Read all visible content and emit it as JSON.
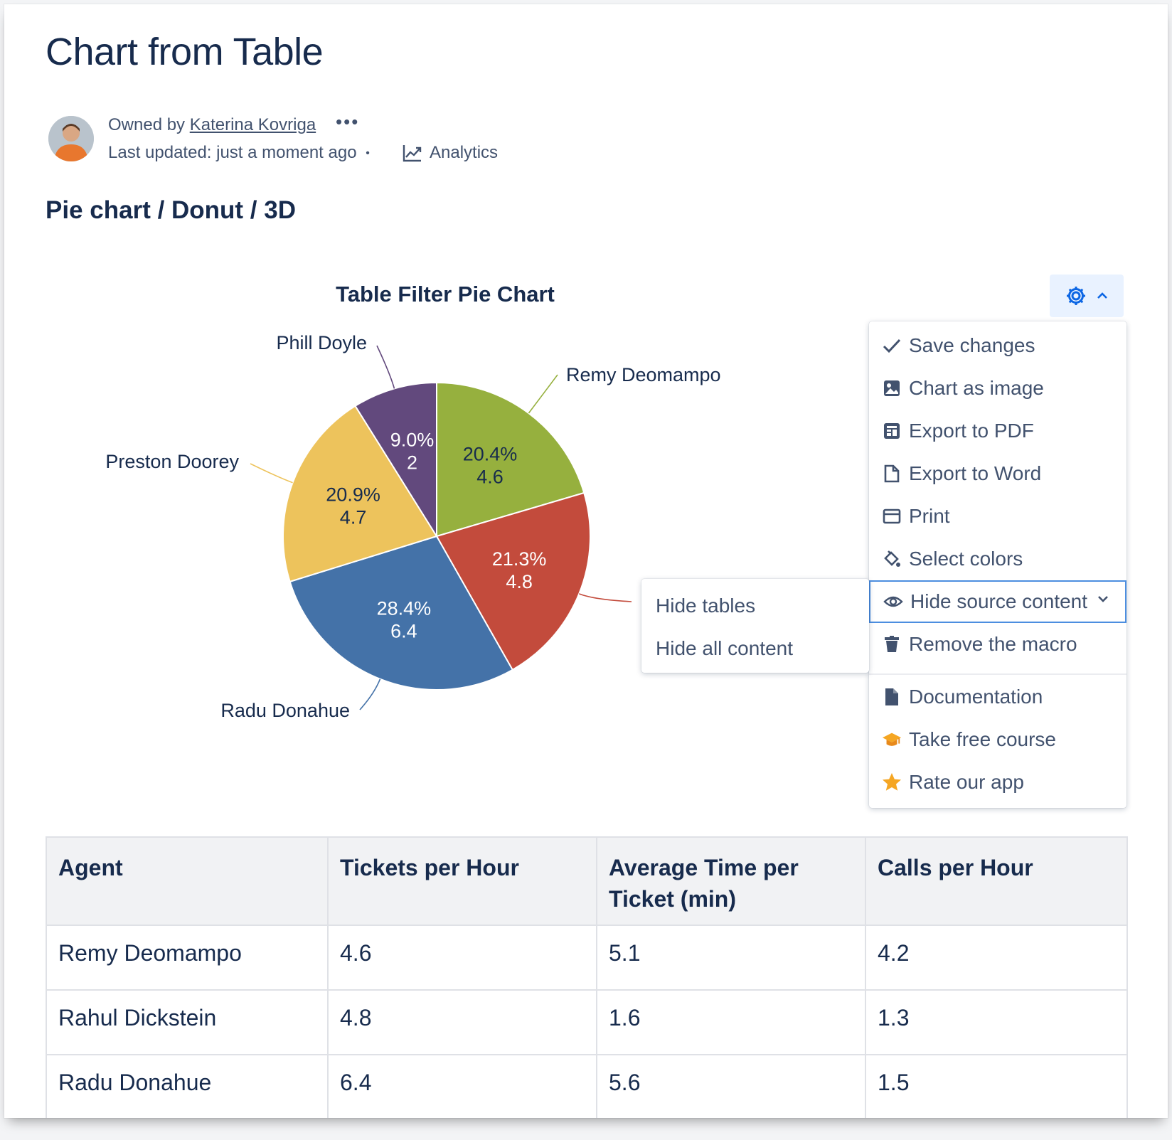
{
  "page": {
    "title": "Chart from Table",
    "owned_by_label": "Owned by",
    "owner": "Katerina Kovriga",
    "more_dots": "•••",
    "last_updated": "Last updated: just a moment ago",
    "bullet": "•",
    "analytics_label": "Analytics",
    "section_heading": "Pie chart / Donut / 3D"
  },
  "chart_data": {
    "type": "pie",
    "title": "Table Filter Pie Chart",
    "slices": [
      {
        "label": "Remy Deomampo",
        "value": 4.6,
        "percent": "20.4%",
        "color": "#96b03e"
      },
      {
        "label": "Rahul Dickstein",
        "value": 4.8,
        "percent": "21.3%",
        "color": "#c34b3c"
      },
      {
        "label": "Radu Donahue",
        "value": 6.4,
        "percent": "28.4%",
        "color": "#4472a8"
      },
      {
        "label": "Preston Doorey",
        "value": 4.7,
        "percent": "20.9%",
        "color": "#edc35c"
      },
      {
        "label": "Phill Doyle",
        "value": 2,
        "percent": "9.0%",
        "color": "#62497d"
      }
    ]
  },
  "menu": {
    "items": [
      {
        "label": "Save changes",
        "icon": "check-icon"
      },
      {
        "label": "Chart as image",
        "icon": "image-icon"
      },
      {
        "label": "Export to PDF",
        "icon": "pdf-icon"
      },
      {
        "label": "Export to Word",
        "icon": "document-icon"
      },
      {
        "label": "Print",
        "icon": "print-icon"
      },
      {
        "label": "Select colors",
        "icon": "paint-bucket-icon"
      },
      {
        "label": "Hide source content",
        "icon": "eye-icon"
      },
      {
        "label": "Remove the macro",
        "icon": "trash-icon"
      },
      {
        "label": "Documentation",
        "icon": "file-icon"
      },
      {
        "label": "Take free course",
        "icon": "graduation-cap-icon"
      },
      {
        "label": "Rate our app",
        "icon": "star-icon"
      }
    ],
    "submenu": [
      "Hide tables",
      "Hide all content"
    ]
  },
  "table": {
    "headers": [
      "Agent",
      "Tickets per Hour",
      "Average Time per Ticket (min)",
      "Calls per Hour"
    ],
    "rows": [
      [
        "Remy Deomampo",
        "4.6",
        "5.1",
        "4.2"
      ],
      [
        "Rahul Dickstein",
        "4.8",
        "1.6",
        "1.3"
      ],
      [
        "Radu Donahue",
        "6.4",
        "5.6",
        "1.5"
      ]
    ]
  },
  "colors": {
    "accent": "#0c66e4",
    "text": "#172b4d",
    "muted": "#42526e"
  }
}
